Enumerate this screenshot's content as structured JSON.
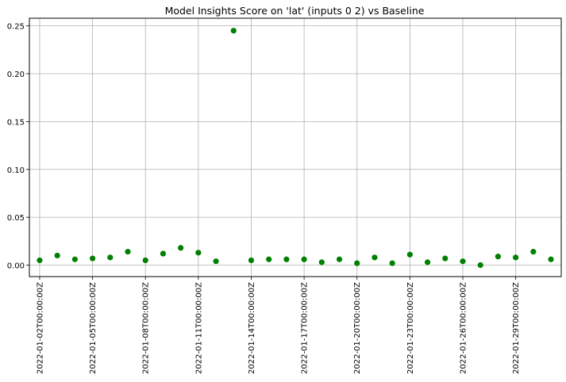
{
  "chart_data": {
    "type": "scatter",
    "title": "Model Insights Score on 'lat' (inputs 0 2) vs Baseline",
    "xlabel": "",
    "ylabel": "",
    "grid": true,
    "marker_color": "#008000",
    "x_ticks": [
      "2022-01-02T00:00:00Z",
      "2022-01-05T00:00:00Z",
      "2022-01-08T00:00:00Z",
      "2022-01-11T00:00:00Z",
      "2022-01-14T00:00:00Z",
      "2022-01-17T00:00:00Z",
      "2022-01-20T00:00:00Z",
      "2022-01-23T00:00:00Z",
      "2022-01-26T00:00:00Z",
      "2022-01-29T00:00:00Z"
    ],
    "y_ticks": [
      "0.00",
      "0.05",
      "0.10",
      "0.15",
      "0.20",
      "0.25"
    ],
    "xlim": [
      "2022-01-01T10:00:00Z",
      "2022-01-31T14:00:00Z"
    ],
    "ylim": [
      -0.012,
      0.258
    ],
    "series": [
      {
        "x": [
          "2022-01-02",
          "2022-01-03",
          "2022-01-04",
          "2022-01-05",
          "2022-01-06",
          "2022-01-07",
          "2022-01-08",
          "2022-01-09",
          "2022-01-10",
          "2022-01-11",
          "2022-01-12",
          "2022-01-13",
          "2022-01-14",
          "2022-01-15",
          "2022-01-16",
          "2022-01-17",
          "2022-01-18",
          "2022-01-19",
          "2022-01-20",
          "2022-01-21",
          "2022-01-22",
          "2022-01-23",
          "2022-01-24",
          "2022-01-25",
          "2022-01-26",
          "2022-01-27",
          "2022-01-28",
          "2022-01-29",
          "2022-01-30",
          "2022-01-31"
        ],
        "y": [
          0.005,
          0.01,
          0.006,
          0.007,
          0.008,
          0.014,
          0.005,
          0.012,
          0.018,
          0.013,
          0.004,
          0.245,
          0.005,
          0.006,
          0.006,
          0.006,
          0.003,
          0.006,
          0.002,
          0.008,
          0.002,
          0.011,
          0.003,
          0.007,
          0.004,
          0.0,
          0.009,
          0.008,
          0.014,
          0.006
        ]
      }
    ]
  }
}
